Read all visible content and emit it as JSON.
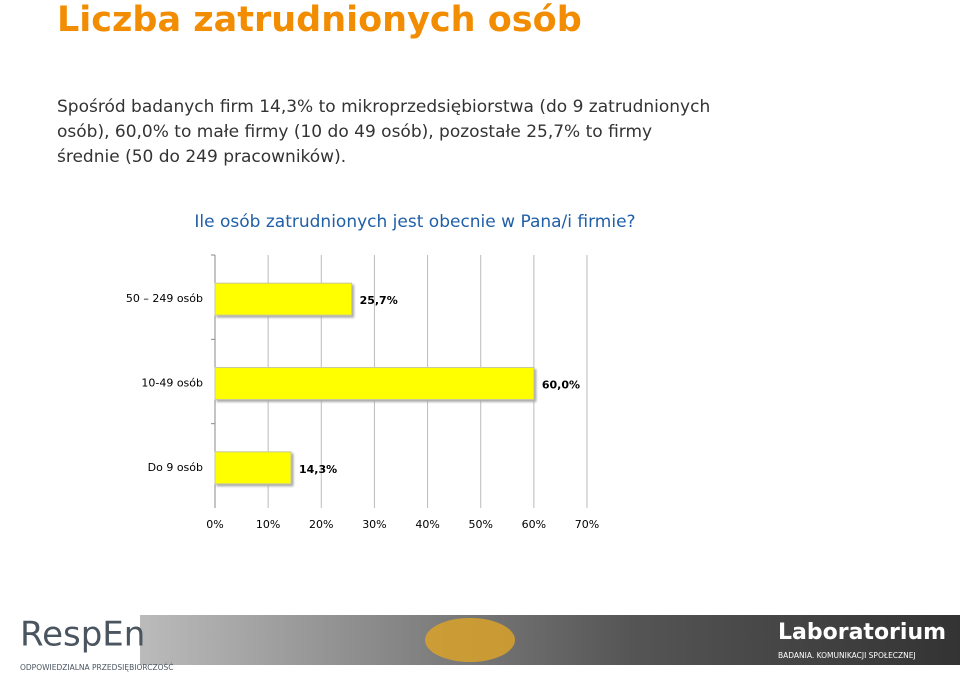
{
  "header": {
    "title": "Liczba zatrudnionych osób",
    "text": "Spośród badanych firm 14,3% to mikroprzedsiębiorstwa (do 9 zatrudnionych osób), 60,0% to małe firmy (10 do 49 osób), pozostałe 25,7% to firmy średnie (50 do 249 pracowników)."
  },
  "chart_data": {
    "type": "hbar",
    "title": "Ile osób zatrudnionych jest obecnie w Pana/i firmie?",
    "categories": [
      "50 – 249 osób",
      "10-49 osób",
      "Do 9 osób"
    ],
    "values": [
      25.7,
      60.0,
      14.3
    ],
    "value_labels": [
      "25,7%",
      "60,0%",
      "14,3%"
    ],
    "color": "#ffff00",
    "xlim": [
      0,
      70
    ],
    "xticks": [
      {
        "value": 0,
        "label": "0%"
      },
      {
        "value": 10,
        "label": "10%"
      },
      {
        "value": 20,
        "label": "20%"
      },
      {
        "value": 30,
        "label": "30%"
      },
      {
        "value": 40,
        "label": "40%"
      },
      {
        "value": 50,
        "label": "50%"
      },
      {
        "value": 60,
        "label": "60%"
      },
      {
        "value": 70,
        "label": "70%"
      }
    ],
    "grid": true
  },
  "footer": {
    "left_logo": "RespEn",
    "left_tagline": "ODPOWIEDZIALNA PRZEDSIĘBIORCZOŚĆ",
    "right_logo": "Laboratorium",
    "right_tagline": "BADANIA. KOMUNIKACJI SPOŁECZNEJ"
  }
}
